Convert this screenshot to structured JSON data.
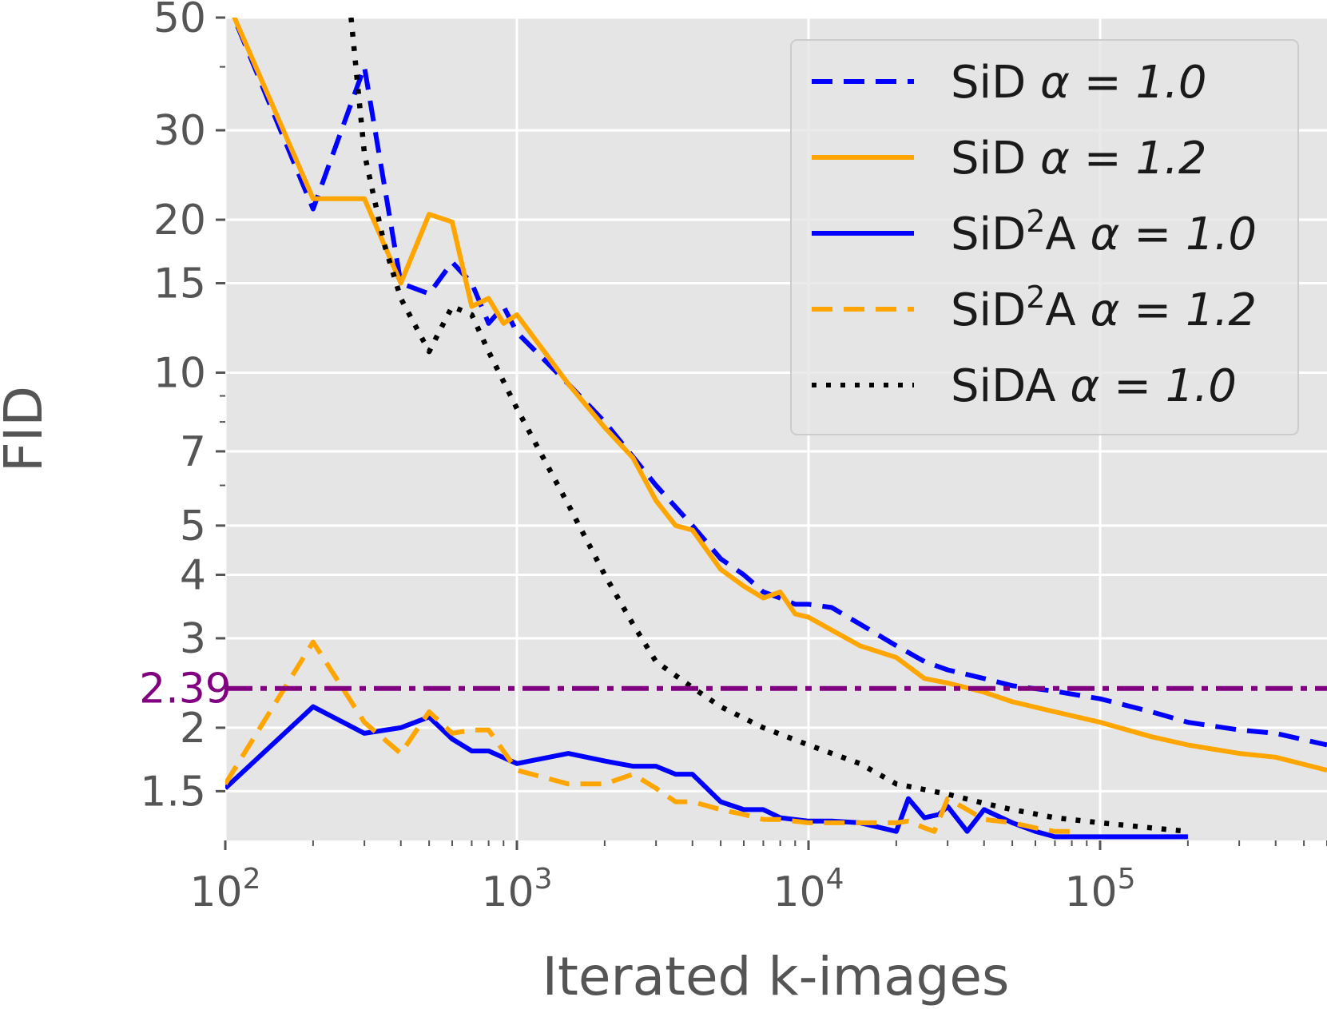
{
  "chart_data": {
    "type": "line",
    "title": "",
    "xlabel": "Iterated k-images",
    "ylabel": "FID",
    "xscale": "log",
    "yscale": "log",
    "xlim": [
      100,
      600000
    ],
    "ylim": [
      1.2,
      50
    ],
    "grid": true,
    "x_ticks": [
      {
        "value": 100,
        "base": "10",
        "exp": "2"
      },
      {
        "value": 1000,
        "base": "10",
        "exp": "3"
      },
      {
        "value": 10000,
        "base": "10",
        "exp": "4"
      },
      {
        "value": 100000,
        "base": "10",
        "exp": "5"
      }
    ],
    "y_ticks": [
      {
        "value": 1.5,
        "label": "1.5"
      },
      {
        "value": 2,
        "label": "2"
      },
      {
        "value": 3,
        "label": "3"
      },
      {
        "value": 4,
        "label": "4"
      },
      {
        "value": 5,
        "label": "5"
      },
      {
        "value": 7,
        "label": "7"
      },
      {
        "value": 10,
        "label": "10"
      },
      {
        "value": 15,
        "label": "15"
      },
      {
        "value": 20,
        "label": "20"
      },
      {
        "value": 30,
        "label": "30"
      },
      {
        "value": 50,
        "label": "50"
      }
    ],
    "reference_line": {
      "value": 2.39,
      "label": "2.39",
      "color": "#800080",
      "style": "dashdot"
    },
    "legend": {
      "position": "top-right",
      "entries": [
        {
          "name": "SiD",
          "sup": "",
          "alpha": "α = 1.0",
          "color": "#0000ff",
          "style": "dashed"
        },
        {
          "name": "SiD",
          "sup": "",
          "alpha": "α = 1.2",
          "color": "#ffa500",
          "style": "solid"
        },
        {
          "name": "SiD",
          "sup": "2",
          "suffix": "A",
          "alpha": "α = 1.0",
          "color": "#0000ff",
          "style": "solid"
        },
        {
          "name": "SiD",
          "sup": "2",
          "suffix": "A",
          "alpha": "α = 1.2",
          "color": "#ffa500",
          "style": "dashed"
        },
        {
          "name": "SiDA",
          "sup": "",
          "alpha": "α = 1.0",
          "color": "#000000",
          "style": "dotted"
        }
      ]
    },
    "series": [
      {
        "name": "SiD α = 1.0",
        "color": "#0000ff",
        "style": "dashed",
        "x": [
          100,
          200,
          300,
          400,
          500,
          600,
          700,
          800,
          900,
          1000,
          1500,
          2000,
          3000,
          4000,
          5000,
          6000,
          7000,
          8000,
          9000,
          10000,
          12000,
          15000,
          20000,
          25000,
          30000,
          40000,
          50000,
          70000,
          100000,
          150000,
          200000,
          300000,
          400000,
          600000
        ],
        "y": [
          55,
          21,
          40,
          15,
          14.3,
          16.5,
          15,
          12.5,
          13.5,
          12,
          9.5,
          8,
          6,
          5,
          4.3,
          4,
          3.7,
          3.6,
          3.5,
          3.5,
          3.45,
          3.2,
          2.9,
          2.7,
          2.6,
          2.5,
          2.42,
          2.36,
          2.28,
          2.15,
          2.05,
          1.98,
          1.95,
          1.85
        ]
      },
      {
        "name": "SiD α = 1.2",
        "color": "#ffa500",
        "style": "solid",
        "x": [
          100,
          200,
          300,
          400,
          500,
          600,
          700,
          800,
          900,
          1000,
          1500,
          2000,
          2500,
          3000,
          3500,
          4000,
          5000,
          6000,
          7000,
          8000,
          9000,
          10000,
          15000,
          20000,
          25000,
          30000,
          40000,
          50000,
          70000,
          100000,
          150000,
          200000,
          300000,
          400000,
          600000
        ],
        "y": [
          55,
          22,
          22,
          15,
          20.5,
          19.8,
          13.5,
          14,
          12.5,
          13,
          9.5,
          7.8,
          6.8,
          5.6,
          5,
          4.9,
          4.1,
          3.8,
          3.6,
          3.7,
          3.35,
          3.3,
          2.9,
          2.75,
          2.5,
          2.45,
          2.35,
          2.25,
          2.15,
          2.05,
          1.92,
          1.85,
          1.78,
          1.75,
          1.65
        ]
      },
      {
        "name": "SiD2A α = 1.0",
        "color": "#0000ff",
        "style": "solid",
        "x": [
          100,
          200,
          300,
          400,
          500,
          600,
          700,
          800,
          1000,
          1500,
          2000,
          2500,
          3000,
          3500,
          4000,
          5000,
          6000,
          7000,
          8000,
          10000,
          12000,
          15000,
          20000,
          22000,
          25000,
          28000,
          30000,
          35000,
          40000,
          50000,
          60000,
          70000,
          100000,
          150000,
          200000
        ],
        "y": [
          1.52,
          2.2,
          1.95,
          2.0,
          2.1,
          1.9,
          1.8,
          1.8,
          1.7,
          1.78,
          1.72,
          1.68,
          1.68,
          1.62,
          1.62,
          1.43,
          1.38,
          1.38,
          1.33,
          1.31,
          1.31,
          1.3,
          1.25,
          1.45,
          1.33,
          1.35,
          1.4,
          1.25,
          1.38,
          1.3,
          1.25,
          1.22,
          1.22,
          1.22,
          1.22
        ]
      },
      {
        "name": "SiD2A α = 1.2",
        "color": "#ffa500",
        "style": "dashed",
        "x": [
          100,
          200,
          300,
          400,
          500,
          600,
          700,
          800,
          1000,
          1500,
          2000,
          2500,
          3000,
          3500,
          4000,
          5000,
          6000,
          7000,
          8000,
          10000,
          12000,
          15000,
          20000,
          22000,
          25000,
          27000,
          30000,
          35000,
          40000,
          50000,
          60000,
          70000,
          80000
        ],
        "y": [
          1.55,
          2.95,
          2.05,
          1.78,
          2.15,
          1.95,
          1.98,
          1.98,
          1.65,
          1.55,
          1.55,
          1.62,
          1.52,
          1.43,
          1.43,
          1.38,
          1.35,
          1.32,
          1.32,
          1.3,
          1.3,
          1.3,
          1.3,
          1.31,
          1.27,
          1.25,
          1.45,
          1.38,
          1.32,
          1.3,
          1.27,
          1.25,
          1.25
        ]
      },
      {
        "name": "SiDA α = 1.0",
        "color": "#000000",
        "style": "dotted",
        "x": [
          270,
          300,
          350,
          400,
          500,
          600,
          700,
          800,
          1000,
          1500,
          2000,
          2500,
          3000,
          4000,
          5000,
          7000,
          10000,
          15000,
          20000,
          30000,
          40000,
          50000,
          70000,
          100000,
          150000,
          200000
        ],
        "y": [
          50,
          27,
          18,
          14,
          11,
          13.5,
          13,
          11,
          8.5,
          5.5,
          4,
          3.2,
          2.7,
          2.4,
          2.2,
          2.0,
          1.85,
          1.7,
          1.55,
          1.48,
          1.42,
          1.38,
          1.33,
          1.3,
          1.27,
          1.25
        ]
      }
    ]
  }
}
